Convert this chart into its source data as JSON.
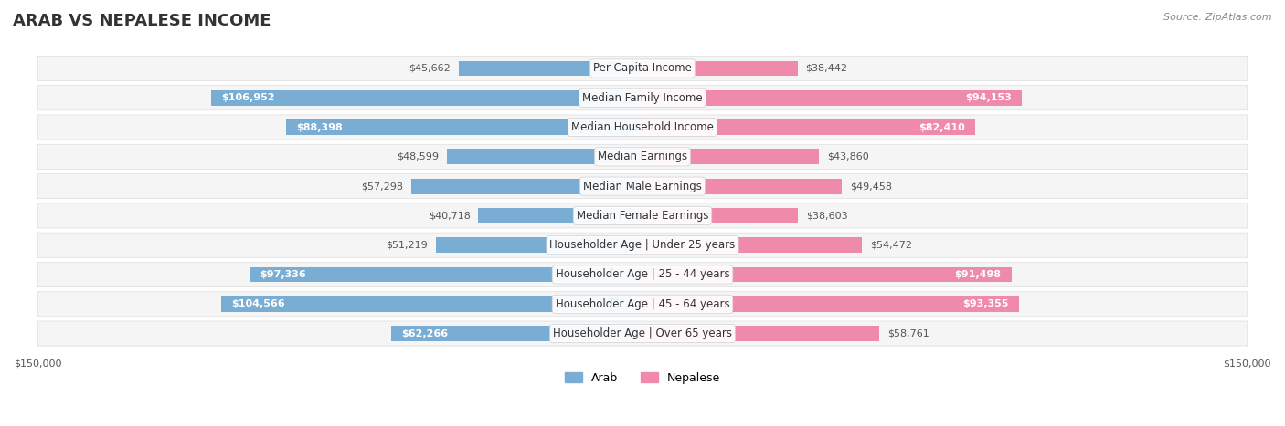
{
  "title": "ARAB VS NEPALESE INCOME",
  "source": "Source: ZipAtlas.com",
  "categories": [
    "Per Capita Income",
    "Median Family Income",
    "Median Household Income",
    "Median Earnings",
    "Median Male Earnings",
    "Median Female Earnings",
    "Householder Age | Under 25 years",
    "Householder Age | 25 - 44 years",
    "Householder Age | 45 - 64 years",
    "Householder Age | Over 65 years"
  ],
  "arab_values": [
    45662,
    106952,
    88398,
    48599,
    57298,
    40718,
    51219,
    97336,
    104566,
    62266
  ],
  "nepalese_values": [
    38442,
    94153,
    82410,
    43860,
    49458,
    38603,
    54472,
    91498,
    93355,
    58761
  ],
  "arab_labels": [
    "$45,662",
    "$106,952",
    "$88,398",
    "$48,599",
    "$57,298",
    "$40,718",
    "$51,219",
    "$97,336",
    "$104,566",
    "$62,266"
  ],
  "nepalese_labels": [
    "$38,442",
    "$94,153",
    "$82,410",
    "$43,860",
    "$49,458",
    "$38,603",
    "$54,472",
    "$91,498",
    "$93,355",
    "$58,761"
  ],
  "arab_color": "#7aadd4",
  "nepalese_color": "#f08aab",
  "max_value": 150000,
  "title_fontsize": 13,
  "label_fontsize": 8.5,
  "value_fontsize": 8,
  "legend_fontsize": 9,
  "axis_label_fontsize": 8,
  "background_color": "#ffffff",
  "row_bg_color": "#f5f5f5",
  "row_border_color": "#dddddd",
  "label_inside_threshold": 60000
}
